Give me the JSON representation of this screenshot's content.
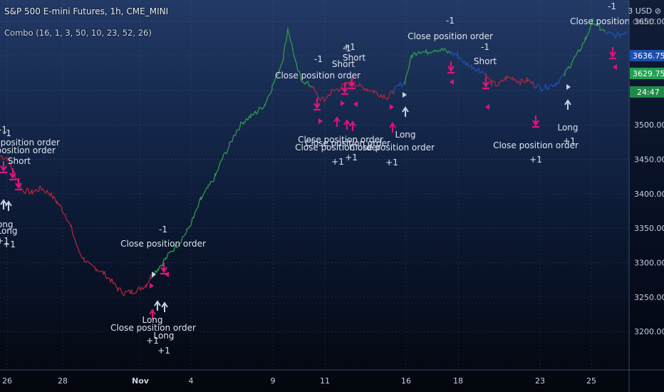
{
  "header": {
    "title": "S&P 500 E-mini Futures, 1h, CME_MINI",
    "indicator": "Combo (16, 1, 3, 50, 10, 23, 52, 26)",
    "currency": "3 USD ⊘"
  },
  "colors": {
    "up": "#2e9a4a",
    "down": "#b0263a",
    "neutral": "#1e4fae",
    "signal_magenta": "#e0147a",
    "signal_white": "#c9d3e6",
    "last_price": "#1e4fae",
    "current_price": "#22a052",
    "countdown": "#1f8a47"
  },
  "price_tags": {
    "last_price": "3636.75",
    "current_price": "3629.75",
    "countdown": "24:47"
  },
  "chart_data": {
    "type": "line",
    "title": "S&P 500 E-mini Futures, 1h, CME_MINI",
    "xlabel": "",
    "ylabel": "",
    "ylim": [
      3195,
      3685
    ],
    "x_ticks": [
      "26",
      "28",
      "Nov",
      "4",
      "9",
      "11",
      "16",
      "18",
      "23",
      "25"
    ],
    "y_ticks": [
      "3650.00",
      "3600.00",
      "3550.00",
      "3500.00",
      "3450.00",
      "3400.00",
      "3350.00",
      "3300.00",
      "3250.00",
      "3200.00"
    ],
    "grid": true,
    "series": [
      {
        "color_state": "down",
        "x": [
          0,
          10,
          20,
          32,
          45,
          58,
          70,
          80,
          92,
          100,
          110,
          118,
          126,
          135,
          145,
          155,
          165,
          175,
          185,
          195,
          205,
          212
        ],
        "y": [
          3455,
          3452,
          3430,
          3405,
          3402,
          3408,
          3400,
          3388,
          3370,
          3350,
          3318,
          3305,
          3295,
          3292,
          3285,
          3275,
          3262,
          3256,
          3258,
          3262,
          3268,
          3280
        ]
      },
      {
        "color_state": "up",
        "x": [
          212,
          222,
          232,
          242,
          252,
          262,
          272,
          282,
          292,
          302,
          312,
          322,
          332,
          342,
          352,
          362,
          372,
          382,
          392,
          398,
          404,
          410,
          416,
          422,
          430,
          438
        ],
        "y": [
          3280,
          3292,
          3305,
          3318,
          3330,
          3345,
          3365,
          3392,
          3408,
          3425,
          3450,
          3470,
          3492,
          3505,
          3512,
          3520,
          3530,
          3555,
          3580,
          3600,
          3640,
          3615,
          3585,
          3568,
          3560,
          3556
        ]
      },
      {
        "color_state": "down",
        "x": [
          438,
          446,
          455,
          465,
          475,
          485,
          495,
          505,
          515,
          525,
          535,
          545,
          552
        ],
        "y": [
          3556,
          3540,
          3535,
          3548,
          3552,
          3558,
          3562,
          3556,
          3552,
          3548,
          3544,
          3540,
          3548
        ]
      },
      {
        "color_state": "neutral",
        "x": [
          552,
          560,
          568
        ],
        "y": [
          3548,
          3556,
          3562
        ]
      },
      {
        "color_state": "up",
        "x": [
          568,
          578,
          588,
          598,
          610,
          622,
          632
        ],
        "y": [
          3562,
          3600,
          3608,
          3605,
          3610,
          3608,
          3604
        ]
      },
      {
        "color_state": "neutral",
        "x": [
          632,
          642,
          652,
          662,
          672,
          680
        ],
        "y": [
          3604,
          3602,
          3590,
          3585,
          3580,
          3575
        ]
      },
      {
        "color_state": "down",
        "x": [
          680,
          690,
          700,
          710,
          720,
          730,
          740,
          750
        ],
        "y": [
          3575,
          3560,
          3558,
          3568,
          3568,
          3562,
          3565,
          3558
        ]
      },
      {
        "color_state": "neutral",
        "x": [
          750,
          760,
          770,
          780,
          792
        ],
        "y": [
          3558,
          3553,
          3556,
          3560,
          3572
        ]
      },
      {
        "color_state": "up",
        "x": [
          792,
          802,
          812,
          822,
          832,
          842,
          850
        ],
        "y": [
          3572,
          3590,
          3605,
          3625,
          3650,
          3640,
          3634
        ]
      },
      {
        "color_state": "neutral",
        "x": [
          850,
          860,
          870,
          880
        ],
        "y": [
          3634,
          3630,
          3630,
          3637
        ]
      }
    ],
    "annotations": [
      "-1",
      "Close position order",
      "Short",
      "Long",
      "+1"
    ]
  }
}
